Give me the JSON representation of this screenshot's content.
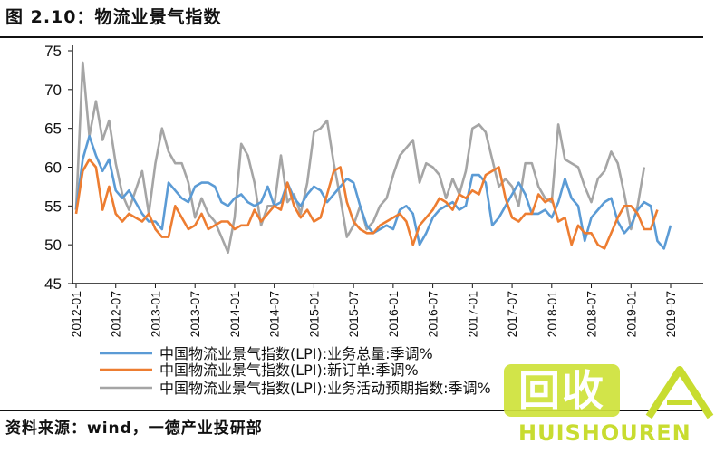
{
  "header": {
    "title": "图 2.10：物流业景气指数"
  },
  "footer": {
    "source": "资料来源：wind，一德产业投研部"
  },
  "watermark": {
    "badge": "回收",
    "text": "HUISHOUREN"
  },
  "colors": {
    "total": "#5b9bd5",
    "orders": "#ed7d31",
    "expect": "#a5a5a5",
    "axis": "#111111"
  },
  "chart_data": {
    "type": "line",
    "ylim": [
      45,
      75
    ],
    "yticks": [
      45,
      50,
      55,
      60,
      65,
      70,
      75
    ],
    "xticks": [
      "2012-01",
      "2012-07",
      "2013-01",
      "2013-07",
      "2014-01",
      "2014-07",
      "2015-01",
      "2015-07",
      "2016-01",
      "2016-07",
      "2017-01",
      "2017-07",
      "2018-01",
      "2018-07",
      "2019-01",
      "2019-07"
    ],
    "x_start": "2012-01",
    "grid": false,
    "legend": "bottom",
    "series": [
      {
        "name": "中国物流业景气指数(LPI):业务总量:季调%",
        "values": [
          54.5,
          61.0,
          64.0,
          61.5,
          59.5,
          61.0,
          57.0,
          56.0,
          57.0,
          55.5,
          54.0,
          53.0,
          53.0,
          52.0,
          58.0,
          57.0,
          56.0,
          55.5,
          57.5,
          58.0,
          58.0,
          57.5,
          55.5,
          55.0,
          56.0,
          56.5,
          55.5,
          55.0,
          55.5,
          57.5,
          55.0,
          55.5,
          58.0,
          56.0,
          55.0,
          56.5,
          57.5,
          57.0,
          55.5,
          56.5,
          57.5,
          58.5,
          58.0,
          55.0,
          52.5,
          51.5,
          52.0,
          52.5,
          52.0,
          54.5,
          55.0,
          54.0,
          50.0,
          51.5,
          53.5,
          54.5,
          55.0,
          55.5,
          54.5,
          55.0,
          59.0,
          59.0,
          58.0,
          52.5,
          53.5,
          55.0,
          56.5,
          58.0,
          56.5,
          54.0,
          54.0,
          54.5,
          53.5,
          55.5,
          58.5,
          56.0,
          55.0,
          50.5,
          53.5,
          54.5,
          55.5,
          56.0,
          53.0,
          51.5,
          52.5,
          54.5,
          55.5,
          55.0,
          50.5,
          49.5,
          52.5
        ]
      },
      {
        "name": "中国物流业景气指数(LPI):新订单:季调%",
        "values": [
          54.0,
          59.5,
          61.0,
          60.0,
          54.5,
          57.5,
          54.0,
          53.0,
          54.0,
          53.5,
          53.0,
          54.0,
          52.0,
          51.0,
          51.0,
          55.0,
          53.5,
          52.0,
          52.5,
          54.0,
          52.0,
          52.5,
          53.0,
          53.0,
          52.0,
          52.5,
          52.5,
          54.5,
          53.0,
          54.0,
          55.0,
          54.5,
          58.0,
          55.0,
          53.5,
          54.5,
          53.0,
          53.5,
          56.5,
          59.5,
          60.0,
          55.5,
          53.0,
          52.0,
          51.5,
          51.5,
          52.5,
          53.0,
          53.5,
          54.0,
          53.0,
          50.0,
          52.5,
          53.5,
          54.5,
          56.0,
          55.5,
          54.5,
          56.5,
          56.0,
          57.0,
          56.5,
          59.0,
          59.5,
          60.0,
          56.0,
          53.5,
          53.0,
          54.0,
          54.0,
          56.5,
          55.5,
          56.0,
          53.0,
          53.5,
          50.0,
          52.5,
          51.5,
          51.5,
          50.0,
          49.5,
          51.5,
          53.5,
          55.0,
          55.0,
          54.0,
          52.0,
          52.0,
          54.5
        ]
      },
      {
        "name": "中国物流业景气指数(LPI):业务活动预期指数:季调%",
        "values": [
          54.5,
          73.5,
          64.0,
          68.5,
          63.5,
          66.0,
          60.5,
          56.5,
          54.5,
          57.0,
          59.5,
          54.0,
          60.5,
          65.0,
          62.0,
          60.5,
          60.5,
          58.0,
          53.5,
          56.0,
          54.0,
          53.0,
          51.0,
          49.0,
          53.5,
          63.0,
          61.5,
          58.0,
          52.5,
          55.0,
          55.0,
          61.5,
          55.5,
          56.5,
          54.0,
          58.0,
          64.5,
          65.0,
          66.0,
          60.5,
          56.0,
          51.0,
          52.5,
          55.0,
          52.0,
          53.0,
          55.0,
          56.0,
          59.0,
          61.5,
          62.5,
          63.5,
          58.0,
          60.5,
          60.0,
          59.0,
          56.0,
          58.5,
          56.5,
          59.5,
          65.0,
          65.5,
          64.5,
          61.0,
          57.5,
          58.5,
          57.5,
          55.0,
          60.5,
          60.5,
          57.5,
          56.0,
          55.5,
          65.5,
          61.0,
          60.5,
          60.0,
          57.5,
          55.5,
          58.5,
          59.5,
          62.0,
          60.5,
          56.5,
          52.0,
          55.0,
          60.0
        ]
      }
    ]
  }
}
